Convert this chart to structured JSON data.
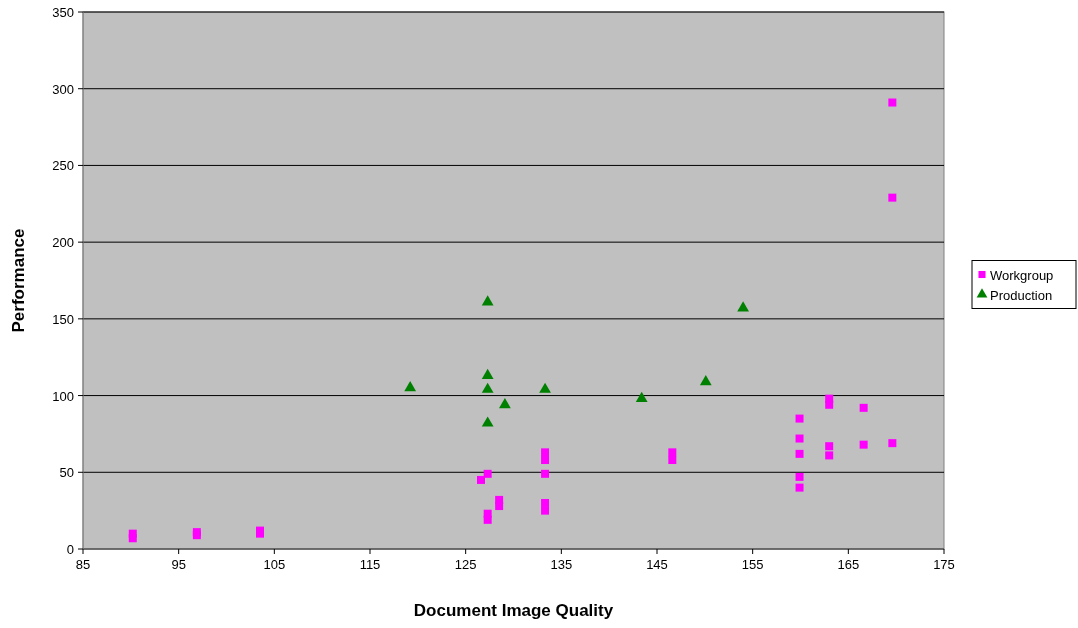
{
  "chart_data": {
    "type": "scatter",
    "xlabel": "Document Image Quality",
    "ylabel": "Performance",
    "xlim": [
      85,
      175
    ],
    "xticks": [
      85,
      95,
      105,
      115,
      125,
      135,
      145,
      155,
      165,
      175
    ],
    "ylim": [
      0,
      350
    ],
    "yticks": [
      0,
      50,
      100,
      150,
      200,
      250,
      300,
      350
    ],
    "grid": "y",
    "legend": "right",
    "series": [
      {
        "name": "Workgroup",
        "color": "#ff00ff",
        "marker": "square",
        "x": [
          90.2,
          90.2,
          96.9,
          96.9,
          103.5,
          103.5,
          126.6,
          127.3,
          127.3,
          127.3,
          128.5,
          128.5,
          133.3,
          133.3,
          133.3,
          133.3,
          133.3,
          146.6,
          146.6,
          159.9,
          159.9,
          159.9,
          159.9,
          159.9,
          163,
          163,
          163,
          163,
          166.6,
          166.6,
          169.6,
          169.6,
          169.6
        ],
        "values": [
          7,
          10,
          9,
          11,
          10,
          12,
          45,
          49,
          19,
          23,
          28,
          32,
          25,
          30,
          49,
          58,
          63,
          58,
          63,
          40,
          47,
          62,
          72,
          85,
          61,
          67,
          94,
          98,
          68,
          92,
          291,
          229,
          69
        ]
      },
      {
        "name": "Production",
        "color": "#008000",
        "marker": "triangle",
        "x": [
          119.2,
          127.3,
          127.3,
          127.3,
          127.3,
          129.1,
          133.3,
          143.4,
          150.1,
          154
        ],
        "values": [
          105,
          161,
          113,
          104,
          82,
          94,
          104,
          98,
          109,
          157
        ]
      }
    ]
  }
}
